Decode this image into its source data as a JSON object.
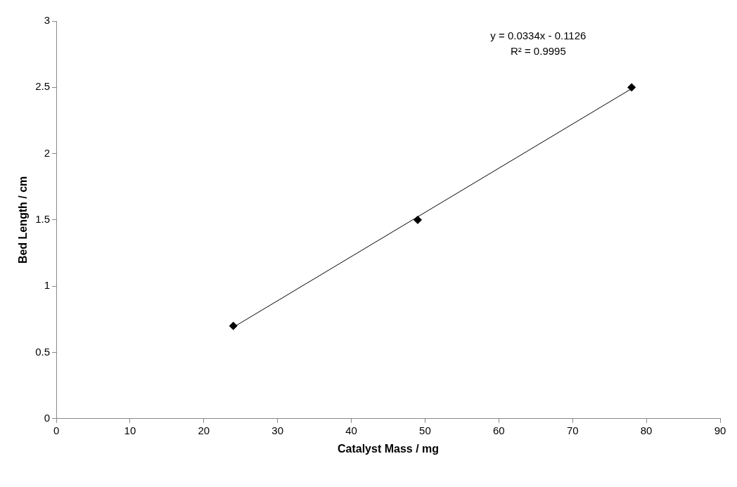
{
  "chart_data": {
    "type": "scatter",
    "xlabel": "Catalyst Mass / mg",
    "ylabel": "Bed Length / cm",
    "xlim": [
      0,
      90
    ],
    "xticks": [
      0,
      10,
      20,
      30,
      40,
      50,
      60,
      70,
      80,
      90
    ],
    "ylim": [
      0,
      3
    ],
    "yticks": [
      0,
      0.5,
      1,
      1.5,
      2,
      2.5,
      3
    ],
    "legend": false,
    "series": [
      {
        "type": "scatter",
        "color": "#000000",
        "marker": "diamond",
        "x": [
          24,
          49,
          78
        ],
        "values": [
          0.7,
          1.5,
          2.5
        ]
      },
      {
        "type": "line",
        "color": "#000000",
        "marker": "none",
        "x": [
          24,
          78
        ],
        "values": [
          0.69,
          2.49
        ]
      }
    ],
    "annotations": [
      "y = 0.0334x - 0.1126",
      "R² = 0.9995"
    ]
  }
}
